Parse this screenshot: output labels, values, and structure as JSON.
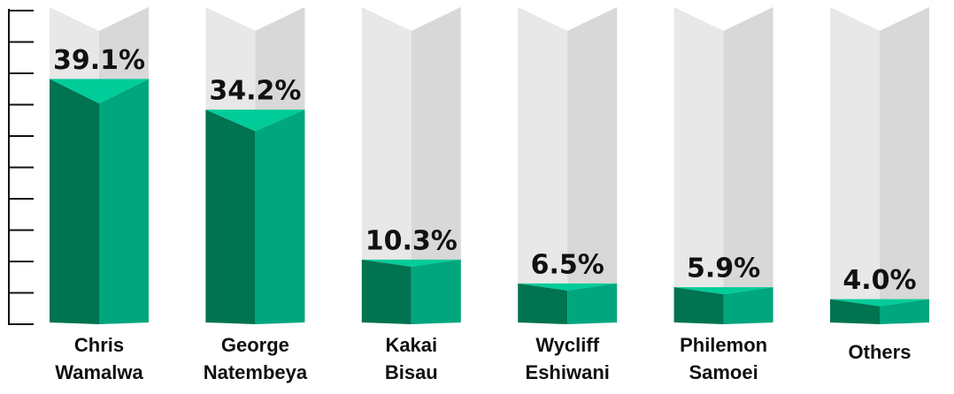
{
  "chart_data": {
    "type": "bar",
    "categories": [
      [
        "Chris",
        "Wamalwa"
      ],
      [
        "George",
        "Natembeya"
      ],
      [
        "Kakai",
        "Bisau"
      ],
      [
        "Wycliff",
        "Eshiwani"
      ],
      [
        "Philemon",
        "Samoei"
      ],
      [
        "Others"
      ]
    ],
    "values": [
      39.1,
      34.2,
      10.3,
      6.5,
      5.9,
      4.0
    ],
    "value_labels": [
      "39.1%",
      "34.2%",
      "10.3%",
      "6.5%",
      "5.9%",
      "4.0%"
    ],
    "color": "#00a67e",
    "ylim": [
      0,
      50
    ],
    "yticks": [
      0,
      5,
      10,
      15,
      20,
      25,
      30,
      35,
      40,
      45,
      50
    ]
  }
}
